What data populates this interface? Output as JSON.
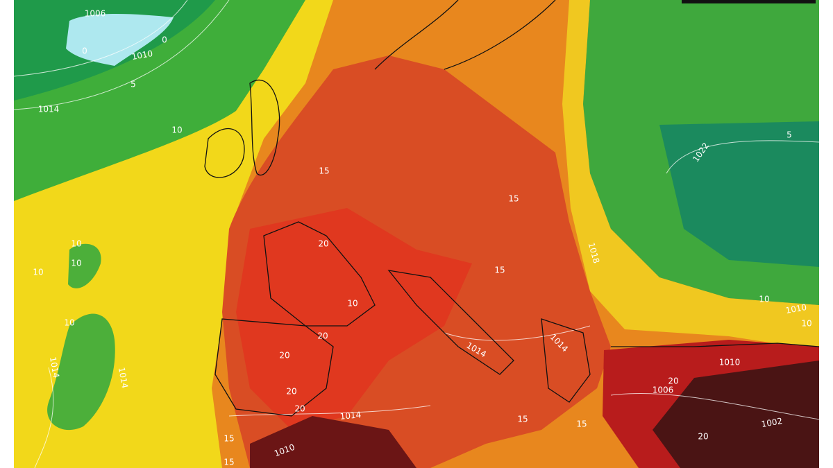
{
  "contour_labels": [
    "1006",
    "0",
    "0",
    "1010",
    "5",
    "1014",
    "10",
    "15",
    "1022",
    "5",
    "15",
    "10",
    "10",
    "10",
    "10",
    "1014",
    "1014",
    "20",
    "20",
    "20",
    "20",
    "20",
    "10",
    "1018",
    "15",
    "1014",
    "1014",
    "10",
    "1010",
    "10",
    "1010",
    "20",
    "1006",
    "1002",
    "15",
    "15",
    "20",
    "1014",
    "15",
    "15",
    "1010"
  ]
}
